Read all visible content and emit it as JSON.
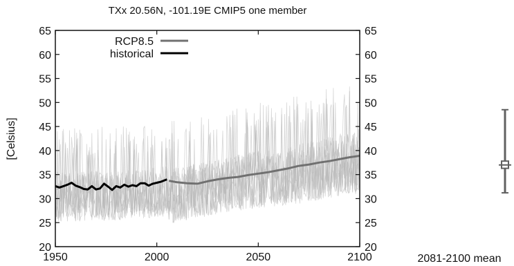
{
  "chart_data": {
    "type": "line",
    "title": "TXx 20.56N, -101.19E CMIP5 one member",
    "ylabel": "[Celsius]",
    "xlabel": "",
    "xlim": [
      1950,
      2100
    ],
    "ylim": [
      20,
      65
    ],
    "x_ticks": [
      "1950",
      "2000",
      "2050",
      "2100"
    ],
    "y_ticks": [
      "20",
      "25",
      "30",
      "35",
      "40",
      "45",
      "50",
      "55",
      "60",
      "65"
    ],
    "y_ticks_right": [
      "20",
      "25",
      "30",
      "35",
      "40",
      "45",
      "50",
      "55",
      "60",
      "65"
    ],
    "grid": false,
    "legend_position": "top-left",
    "colors": {
      "historical": "#000000",
      "rcp85": "#707070",
      "members": "#b4b4b4",
      "boxplot": "#606060"
    },
    "series": [
      {
        "name": "historical",
        "x": [
          1950,
          1952,
          1954,
          1956,
          1958,
          1960,
          1962,
          1964,
          1966,
          1968,
          1970,
          1972,
          1974,
          1976,
          1978,
          1980,
          1982,
          1984,
          1986,
          1988,
          1990,
          1992,
          1994,
          1996,
          1998,
          2000,
          2002,
          2005
        ],
        "values": [
          32.6,
          32.3,
          32.6,
          32.9,
          33.3,
          32.7,
          32.4,
          32.0,
          31.9,
          32.6,
          31.9,
          32.1,
          33.1,
          32.5,
          31.8,
          32.6,
          32.3,
          32.9,
          32.5,
          32.8,
          32.6,
          33.2,
          33.2,
          32.7,
          33.1,
          33.3,
          33.5,
          34.0
        ]
      },
      {
        "name": "RCP8.5",
        "x": [
          2006,
          2010,
          2015,
          2020,
          2025,
          2030,
          2035,
          2040,
          2045,
          2050,
          2055,
          2060,
          2065,
          2070,
          2075,
          2080,
          2085,
          2090,
          2095,
          2100
        ],
        "values": [
          33.7,
          33.4,
          33.2,
          33.1,
          33.6,
          34.0,
          34.3,
          34.5,
          34.9,
          35.2,
          35.5,
          35.9,
          36.3,
          36.8,
          37.1,
          37.5,
          37.8,
          38.2,
          38.6,
          38.9
        ]
      }
    ],
    "ensemble_band": {
      "x": [
        1950,
        1975,
        2005,
        2006,
        2030,
        2050,
        2075,
        2100
      ],
      "low": [
        26,
        26,
        27,
        25,
        27,
        28,
        29,
        31
      ],
      "high": [
        45,
        45,
        46,
        46,
        48,
        50,
        52,
        55
      ]
    },
    "boxplot": {
      "label": "2081-2100 mean",
      "min": 31.2,
      "q1": 36.3,
      "median": 37.0,
      "q3": 37.8,
      "max": 48.5
    }
  }
}
